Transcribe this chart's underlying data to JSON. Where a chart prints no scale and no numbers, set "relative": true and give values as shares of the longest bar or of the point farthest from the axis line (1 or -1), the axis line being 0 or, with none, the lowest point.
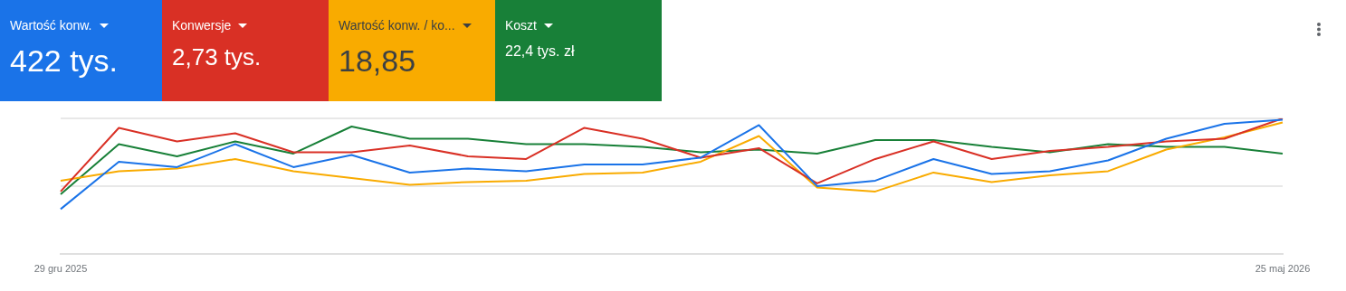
{
  "chart_data": {
    "type": "line",
    "relative": true,
    "ref_lines": [
      {
        "axis": "y",
        "value": 0.5,
        "color": "#e0e0e0"
      },
      {
        "axis": "y",
        "value": 1,
        "color": "#e0e0e0"
      }
    ],
    "marker": "none",
    "line_style": "solid",
    "categories": [
      "29 gru 2025",
      null,
      null,
      null,
      null,
      null,
      null,
      null,
      null,
      null,
      null,
      null,
      null,
      null,
      null,
      null,
      null,
      null,
      null,
      null,
      null,
      "25 maj 2026"
    ],
    "annotations": [
      "Wartość konw.",
      "422 tys.",
      "Konwersje",
      "2,73 tys.",
      "Wartość konw. / ko...",
      "18,85",
      "Koszt",
      "22,4 tys. zł"
    ],
    "series": [
      {
        "color": "#1a73e8",
        "values": [
          0.33,
          0.68,
          0.64,
          0.81,
          0.64,
          0.73,
          0.6,
          0.63,
          0.61,
          0.66,
          0.66,
          0.71,
          0.95,
          0.5,
          0.54,
          0.7,
          0.59,
          0.61,
          0.69,
          0.85,
          0.96,
          0.99
        ]
      },
      {
        "color": "#d93025",
        "values": [
          0.46,
          0.93,
          0.83,
          0.89,
          0.75,
          0.75,
          0.8,
          0.72,
          0.7,
          0.93,
          0.85,
          0.71,
          0.78,
          0.52,
          0.7,
          0.83,
          0.7,
          0.76,
          0.79,
          0.83,
          0.85,
          1.0
        ]
      },
      {
        "color": "#f9ab00",
        "values": [
          0.54,
          0.61,
          0.63,
          0.7,
          0.61,
          0.56,
          0.51,
          0.53,
          0.54,
          0.59,
          0.6,
          0.68,
          0.87,
          0.49,
          0.46,
          0.6,
          0.53,
          0.58,
          0.61,
          0.77,
          0.86,
          0.97
        ]
      },
      {
        "color": "#188038",
        "values": [
          0.44,
          0.81,
          0.72,
          0.83,
          0.74,
          0.94,
          0.85,
          0.85,
          0.81,
          0.81,
          0.79,
          0.75,
          0.77,
          0.74,
          0.84,
          0.84,
          0.79,
          0.75,
          0.81,
          0.79,
          0.79,
          0.74
        ]
      }
    ]
  }
}
